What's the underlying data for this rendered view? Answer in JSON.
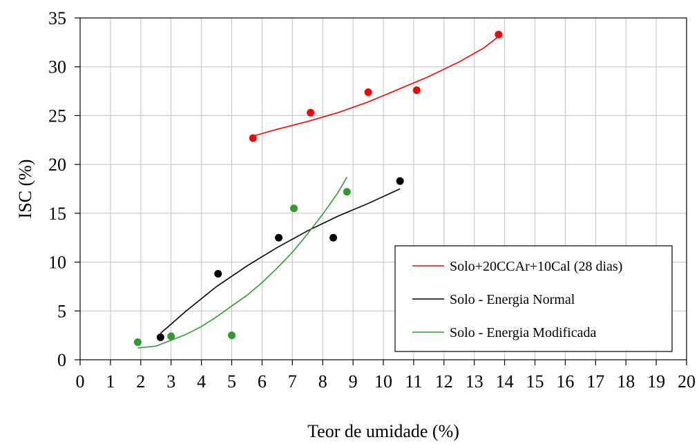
{
  "chart_data": {
    "type": "scatter",
    "xlabel": "Teor de umidade (%)",
    "ylabel": "ISC (%)",
    "xlim": [
      0,
      20
    ],
    "ylim": [
      0,
      35
    ],
    "x_ticks": [
      0,
      1,
      2,
      3,
      4,
      5,
      6,
      7,
      8,
      9,
      10,
      11,
      12,
      13,
      14,
      15,
      16,
      17,
      18,
      19,
      20
    ],
    "y_ticks": [
      0,
      5,
      10,
      15,
      20,
      25,
      30,
      35
    ],
    "grid": true,
    "legend_position": "right",
    "series": [
      {
        "name": "Solo+20CCAr+10Cal (28 dias)",
        "color": "#ff0000",
        "points": [
          {
            "x": 5.7,
            "y": 22.7
          },
          {
            "x": 7.6,
            "y": 25.3
          },
          {
            "x": 9.5,
            "y": 27.4
          },
          {
            "x": 11.1,
            "y": 27.6
          },
          {
            "x": 13.8,
            "y": 33.3
          }
        ],
        "trend": [
          {
            "x": 5.7,
            "y": 22.9
          },
          {
            "x": 6.5,
            "y": 23.6
          },
          {
            "x": 7.5,
            "y": 24.4
          },
          {
            "x": 8.5,
            "y": 25.3
          },
          {
            "x": 9.5,
            "y": 26.4
          },
          {
            "x": 10.5,
            "y": 27.7
          },
          {
            "x": 11.5,
            "y": 29.0
          },
          {
            "x": 12.5,
            "y": 30.5
          },
          {
            "x": 13.3,
            "y": 31.9
          },
          {
            "x": 13.8,
            "y": 33.1
          }
        ]
      },
      {
        "name": "Solo - Energia Normal",
        "color": "#000000",
        "points": [
          {
            "x": 2.65,
            "y": 2.3
          },
          {
            "x": 4.55,
            "y": 8.8
          },
          {
            "x": 6.55,
            "y": 12.5
          },
          {
            "x": 8.35,
            "y": 12.5
          },
          {
            "x": 10.55,
            "y": 18.3
          }
        ],
        "trend": [
          {
            "x": 2.65,
            "y": 2.7
          },
          {
            "x": 3.5,
            "y": 5.0
          },
          {
            "x": 4.5,
            "y": 7.5
          },
          {
            "x": 5.5,
            "y": 9.6
          },
          {
            "x": 6.5,
            "y": 11.5
          },
          {
            "x": 7.5,
            "y": 13.2
          },
          {
            "x": 8.5,
            "y": 14.7
          },
          {
            "x": 9.5,
            "y": 16.0
          },
          {
            "x": 10.55,
            "y": 17.5
          }
        ]
      },
      {
        "name": "Solo - Energia Modificada",
        "color": "#339933",
        "points": [
          {
            "x": 1.9,
            "y": 1.8
          },
          {
            "x": 3.0,
            "y": 2.4
          },
          {
            "x": 5.0,
            "y": 2.5
          },
          {
            "x": 7.05,
            "y": 15.5
          },
          {
            "x": 8.8,
            "y": 17.2
          }
        ],
        "trend": [
          {
            "x": 1.9,
            "y": 1.2
          },
          {
            "x": 2.5,
            "y": 1.4
          },
          {
            "x": 3.0,
            "y": 2.0
          },
          {
            "x": 3.5,
            "y": 2.6
          },
          {
            "x": 4.0,
            "y": 3.4
          },
          {
            "x": 4.5,
            "y": 4.4
          },
          {
            "x": 5.0,
            "y": 5.5
          },
          {
            "x": 5.5,
            "y": 6.6
          },
          {
            "x": 6.0,
            "y": 7.9
          },
          {
            "x": 6.5,
            "y": 9.4
          },
          {
            "x": 7.0,
            "y": 11.0
          },
          {
            "x": 7.5,
            "y": 12.9
          },
          {
            "x": 8.0,
            "y": 14.9
          },
          {
            "x": 8.5,
            "y": 17.1
          },
          {
            "x": 8.8,
            "y": 18.7
          }
        ]
      }
    ]
  }
}
